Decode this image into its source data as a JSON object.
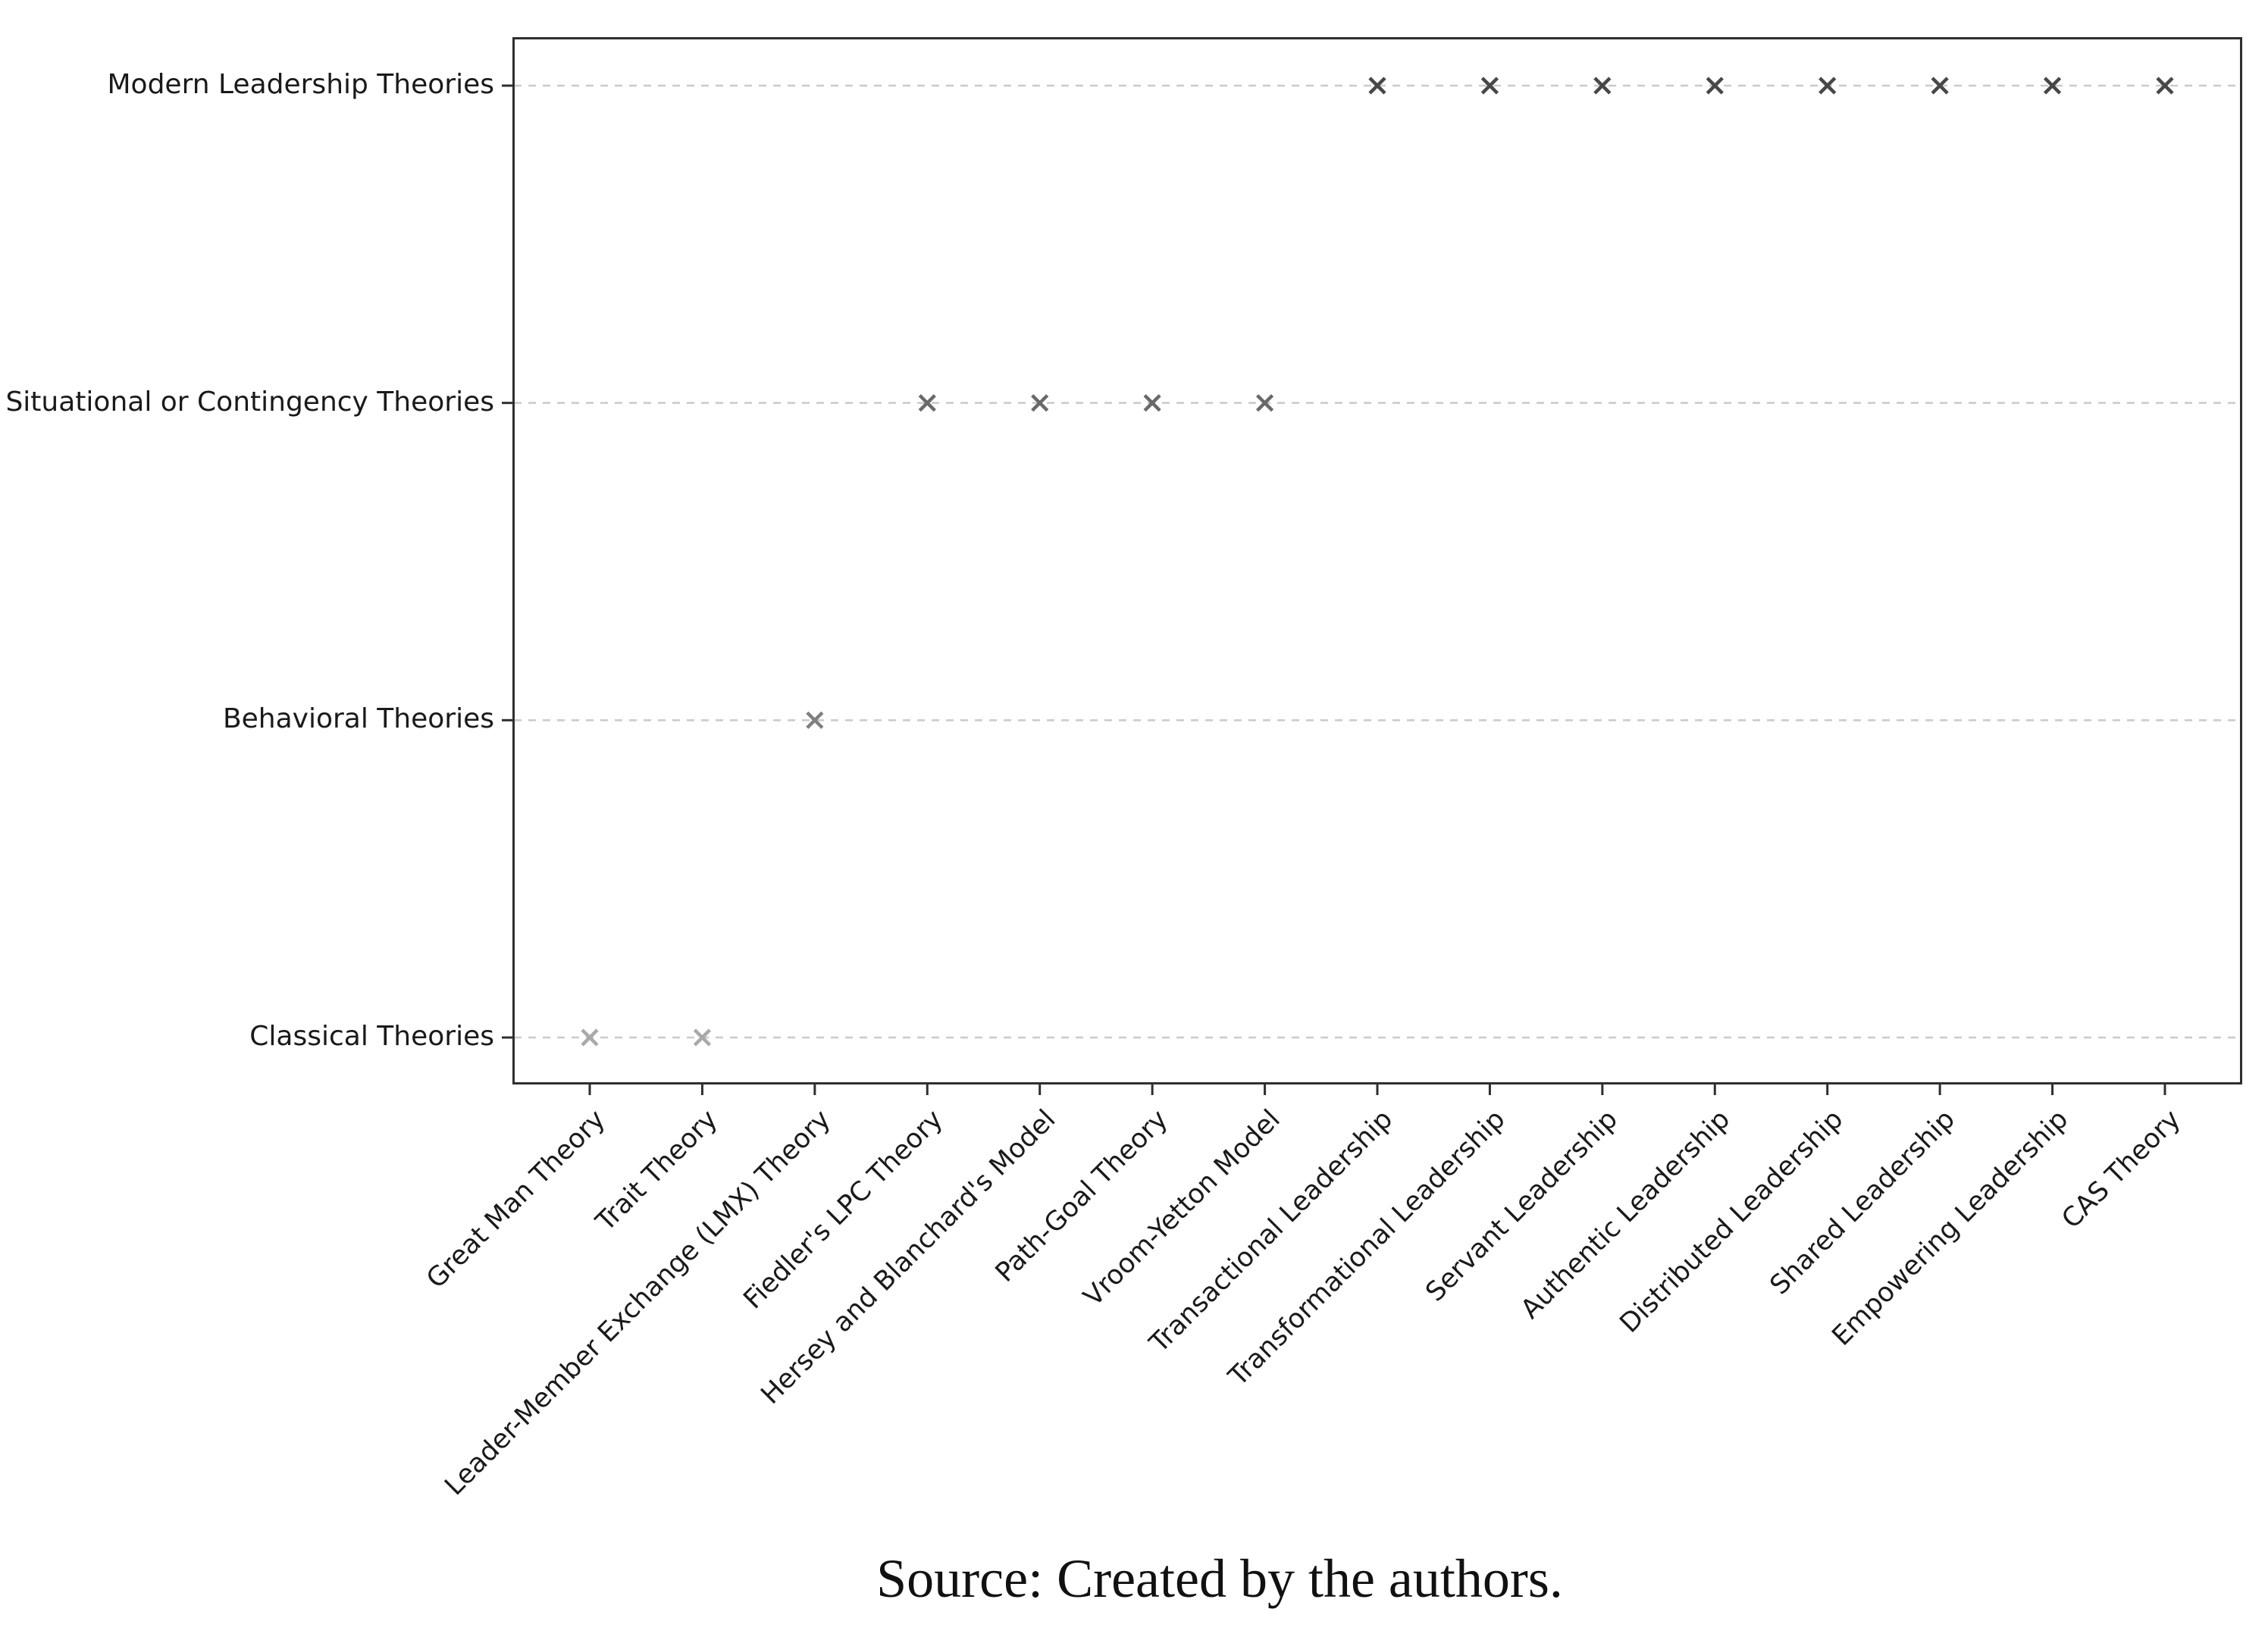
{
  "figure": {
    "source_caption": "Source: Created by the authors."
  },
  "chart_data": {
    "type": "scatter",
    "title": "",
    "xlabel": "",
    "ylabel": "",
    "legend": "none",
    "grid": "horizontal-dashed",
    "gridline_color": "#cacaca",
    "axis_color": "#2f2f2f",
    "tick_label_color": "#1a1a1a",
    "marker": "x",
    "x_categories": [
      "Great Man Theory",
      "Trait Theory",
      "Leader-Member Exchange (LMX) Theory",
      "Fiedler's LPC Theory",
      "Hersey and Blanchard's Model",
      "Path-Goal Theory",
      "Vroom-Yetton Model",
      "Transactional Leadership",
      "Transformational Leadership",
      "Servant Leadership",
      "Authentic Leadership",
      "Distributed Leadership",
      "Shared Leadership",
      "Empowering Leadership",
      "CAS Theory"
    ],
    "y_categories_top_to_bottom": [
      "Modern Leadership Theories",
      "Situational or Contingency Theories",
      "Behavioral Theories",
      "Classical Theories"
    ],
    "marker_colors_by_row": {
      "Modern Leadership Theories": "#474747",
      "Situational or Contingency Theories": "#696969",
      "Behavioral Theories": "#7f7f7f",
      "Classical Theories": "#a9a9a9"
    },
    "points": [
      {
        "x": "Great Man Theory",
        "y": "Classical Theories"
      },
      {
        "x": "Trait Theory",
        "y": "Classical Theories"
      },
      {
        "x": "Leader-Member Exchange (LMX) Theory",
        "y": "Behavioral Theories"
      },
      {
        "x": "Fiedler's LPC Theory",
        "y": "Situational or Contingency Theories"
      },
      {
        "x": "Hersey and Blanchard's Model",
        "y": "Situational or Contingency Theories"
      },
      {
        "x": "Path-Goal Theory",
        "y": "Situational or Contingency Theories"
      },
      {
        "x": "Vroom-Yetton Model",
        "y": "Situational or Contingency Theories"
      },
      {
        "x": "Transactional Leadership",
        "y": "Modern Leadership Theories"
      },
      {
        "x": "Transformational Leadership",
        "y": "Modern Leadership Theories"
      },
      {
        "x": "Servant Leadership",
        "y": "Modern Leadership Theories"
      },
      {
        "x": "Authentic Leadership",
        "y": "Modern Leadership Theories"
      },
      {
        "x": "Distributed Leadership",
        "y": "Modern Leadership Theories"
      },
      {
        "x": "Shared Leadership",
        "y": "Modern Leadership Theories"
      },
      {
        "x": "Empowering Leadership",
        "y": "Modern Leadership Theories"
      },
      {
        "x": "CAS Theory",
        "y": "Modern Leadership Theories"
      }
    ]
  }
}
